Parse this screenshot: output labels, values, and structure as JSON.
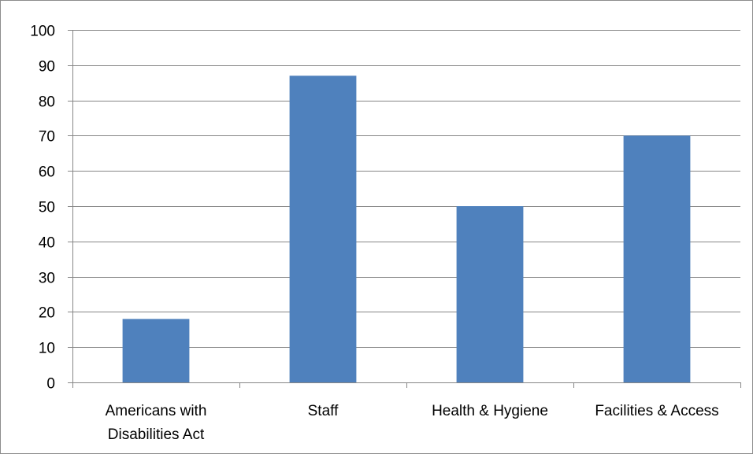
{
  "chart_data": {
    "type": "bar",
    "categories": [
      [
        "Americans with",
        "Disabilities Act"
      ],
      [
        "Staff"
      ],
      [
        "Health & Hygiene"
      ],
      [
        "Facilities & Access"
      ]
    ],
    "values": [
      18,
      87,
      50,
      70
    ],
    "ylim": [
      0,
      100
    ],
    "yticks": [
      "0",
      "10",
      "20",
      "30",
      "40",
      "50",
      "60",
      "70",
      "80",
      "90",
      "100"
    ],
    "title": "",
    "xlabel": "",
    "ylabel": "",
    "grid": true,
    "legend": false,
    "bar_color": "#4F81BD",
    "grid_color": "#868686"
  }
}
